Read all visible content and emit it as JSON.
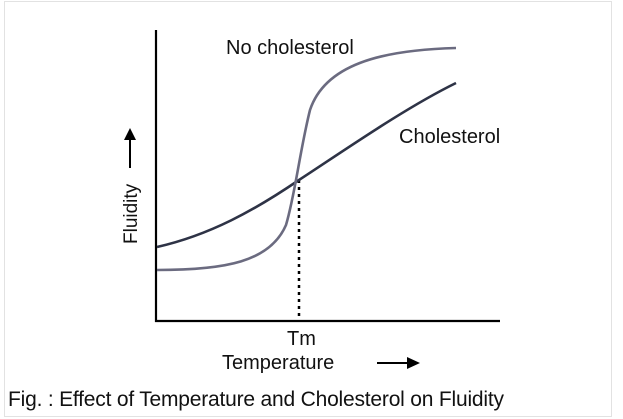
{
  "figure": {
    "y_axis_label": "Fluidity",
    "y_axis_arrow": "up-arrow-icon",
    "x_axis_label": "Temperature",
    "x_axis_arrow": "right-arrow-icon",
    "transition_label": "Tm",
    "curve_labels": {
      "no_cholesterol": "No cholesterol",
      "cholesterol": "Cholesterol"
    },
    "caption": "Fig. : Effect of Temperature and Cholesterol on Fluidity",
    "colors": {
      "no_cholesterol_curve": "#6b6b80",
      "cholesterol_curve": "#2e3346",
      "axes": "#000000"
    }
  }
}
